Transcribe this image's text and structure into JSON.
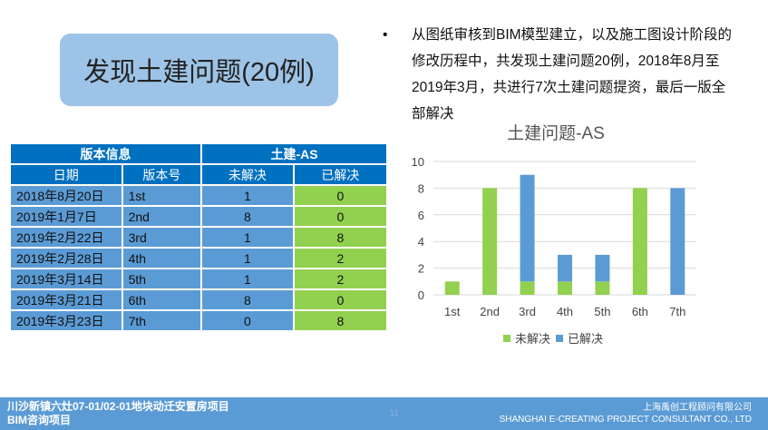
{
  "title": "发现土建问题(20例)",
  "bullet": "从图纸审核到BIM模型建立，以及施工图设计阶段的修改历程中，共发现土建问题20例，2018年8月至2019年3月，共进行7次土建问题提资，最后一版全部解决",
  "table": {
    "group_headers": [
      "版本信息",
      "土建-AS"
    ],
    "headers": [
      "日期",
      "版本号",
      "未解决",
      "已解决"
    ],
    "rows": [
      [
        "2018年8月20日",
        "1st",
        "1",
        "0"
      ],
      [
        "2019年1月7日",
        "2nd",
        "8",
        "0"
      ],
      [
        "2019年2月22日",
        "3rd",
        "1",
        "8"
      ],
      [
        "2019年2月28日",
        "4th",
        "1",
        "2"
      ],
      [
        "2019年3月14日",
        "5th",
        "1",
        "2"
      ],
      [
        "2019年3月21日",
        "6th",
        "8",
        "0"
      ],
      [
        "2019年3月23日",
        "7th",
        "0",
        "8"
      ]
    ]
  },
  "chart_data": {
    "type": "bar",
    "stacked": true,
    "title": "土建问题-AS",
    "categories": [
      "1st",
      "2nd",
      "3rd",
      "4th",
      "5th",
      "6th",
      "7th"
    ],
    "series": [
      {
        "name": "未解决",
        "color": "#92D050",
        "values": [
          1,
          8,
          1,
          1,
          1,
          8,
          0
        ]
      },
      {
        "name": "已解决",
        "color": "#5B9BD5",
        "values": [
          0,
          0,
          8,
          2,
          2,
          0,
          8
        ]
      }
    ],
    "ylim": [
      0,
      10
    ],
    "yticks": [
      0,
      2,
      4,
      6,
      8,
      10
    ],
    "grid": true,
    "legend": "bottom"
  },
  "footer": {
    "project": "川沙新镇六灶07-01/02-01地块动迁安置房项目",
    "sub": "BIM咨询项目",
    "company_cn": "上海禹创工程顾问有限公司",
    "company_en": "SHANGHAI E-CREATING PROJECT CONSULTANT CO., LTD",
    "page": "11"
  }
}
